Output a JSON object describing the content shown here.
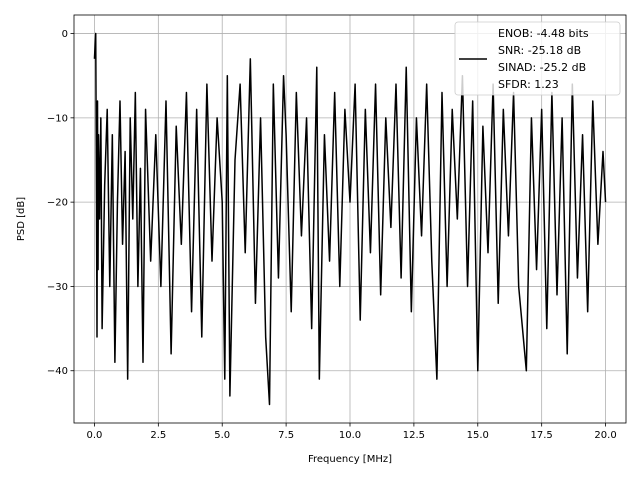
{
  "chart_data": {
    "type": "line",
    "xlabel": "Frequency [MHz]",
    "ylabel": "PSD [dB]",
    "xlim": [
      -0.8,
      20.8
    ],
    "ylim": [
      -46.2,
      2.2
    ],
    "xticks": [
      0.0,
      2.5,
      5.0,
      7.5,
      10.0,
      12.5,
      15.0,
      17.5,
      20.0
    ],
    "xtick_labels": [
      "0.0",
      "2.5",
      "5.0",
      "7.5",
      "10.0",
      "12.5",
      "15.0",
      "17.5",
      "20.0"
    ],
    "yticks": [
      0,
      -10,
      -20,
      -30,
      -40
    ],
    "ytick_labels": [
      "0",
      "−10",
      "−20",
      "−30",
      "−40"
    ],
    "grid": true,
    "legend_position": "top-right",
    "legend_lines": [
      "ENOB: -4.48 bits",
      "SNR: -25.18 dB",
      "SINAD: -25.2 dB",
      "SFDR: 1.23"
    ],
    "series": [
      {
        "color": "#000000",
        "x": [
          0.0,
          0.05,
          0.08,
          0.1,
          0.12,
          0.14,
          0.16,
          0.2,
          0.25,
          0.3,
          0.4,
          0.5,
          0.6,
          0.7,
          0.8,
          0.9,
          1.0,
          1.1,
          1.2,
          1.3,
          1.4,
          1.5,
          1.6,
          1.7,
          1.8,
          1.9,
          2.0,
          2.2,
          2.4,
          2.6,
          2.8,
          3.0,
          3.2,
          3.4,
          3.6,
          3.8,
          4.0,
          4.2,
          4.4,
          4.6,
          4.8,
          5.0,
          5.1,
          5.2,
          5.3,
          5.5,
          5.7,
          5.9,
          6.1,
          6.3,
          6.5,
          6.7,
          6.85,
          7.0,
          7.2,
          7.4,
          7.5,
          7.7,
          7.9,
          8.1,
          8.3,
          8.5,
          8.7,
          8.8,
          9.0,
          9.2,
          9.4,
          9.6,
          9.8,
          10.0,
          10.2,
          10.4,
          10.6,
          10.8,
          11.0,
          11.2,
          11.4,
          11.6,
          11.8,
          12.0,
          12.2,
          12.4,
          12.6,
          12.8,
          13.0,
          13.2,
          13.4,
          13.6,
          13.8,
          14.0,
          14.2,
          14.4,
          14.6,
          14.8,
          15.0,
          15.2,
          15.4,
          15.6,
          15.8,
          16.0,
          16.2,
          16.4,
          16.6,
          16.9,
          17.1,
          17.3,
          17.5,
          17.7,
          17.9,
          18.1,
          18.3,
          18.5,
          18.7,
          18.9,
          19.1,
          19.3,
          19.5,
          19.7,
          19.9,
          20.0
        ],
        "y": [
          -3,
          0,
          -20,
          -36,
          -8,
          -28,
          -12,
          -22,
          -10,
          -35,
          -18,
          -9,
          -30,
          -12,
          -39,
          -20,
          -8,
          -25,
          -14,
          -41,
          -10,
          -22,
          -7,
          -30,
          -16,
          -39,
          -9,
          -27,
          -12,
          -30,
          -8,
          -38,
          -11,
          -25,
          -7,
          -33,
          -9,
          -36,
          -6,
          -27,
          -10,
          -20,
          -41,
          -5,
          -43,
          -15,
          -6,
          -26,
          -3,
          -32,
          -10,
          -36,
          -44,
          -6,
          -29,
          -5,
          -12,
          -33,
          -7,
          -24,
          -10,
          -35,
          -4,
          -41,
          -12,
          -27,
          -7,
          -30,
          -9,
          -20,
          -6,
          -34,
          -9,
          -26,
          -6,
          -31,
          -10,
          -23,
          -6,
          -29,
          -4,
          -33,
          -10,
          -24,
          -6,
          -27,
          -41,
          -7,
          -30,
          -9,
          -22,
          -5,
          -30,
          -8,
          -40,
          -11,
          -26,
          -6,
          -32,
          -9,
          -24,
          -7,
          -30,
          -40,
          -10,
          -28,
          -9,
          -35,
          -7,
          -31,
          -10,
          -38,
          -6,
          -29,
          -12,
          -33,
          -8,
          -25,
          -14,
          -20
        ]
      }
    ]
  }
}
